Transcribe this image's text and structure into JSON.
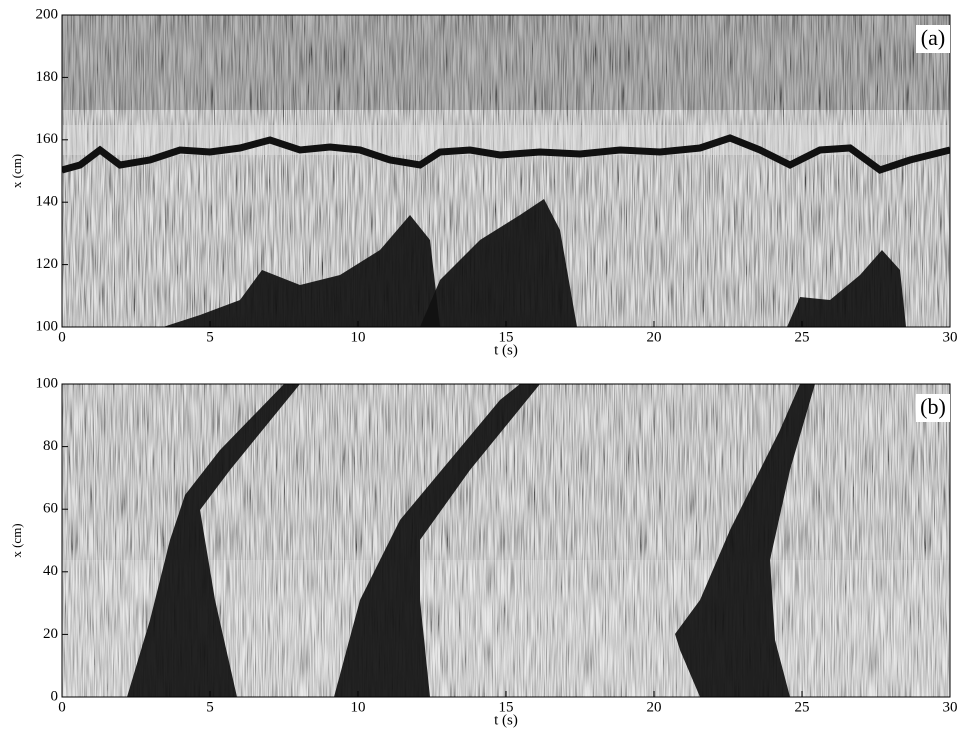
{
  "chart_data": [
    {
      "type": "image",
      "annotation": "(a)",
      "xlabel": "t (s)",
      "ylabel": "x (cm)",
      "xlim": [
        0,
        30
      ],
      "ylim": [
        100,
        200
      ],
      "xticks": [
        0,
        5,
        10,
        15,
        20,
        25,
        30
      ],
      "yticks": [
        100,
        120,
        140,
        160,
        180,
        200
      ]
    },
    {
      "type": "image",
      "annotation": "(b)",
      "xlabel": "t (s)",
      "ylabel": "x (cm)",
      "xlim": [
        0,
        30
      ],
      "ylim": [
        0,
        100
      ],
      "xticks": [
        0,
        5,
        10,
        15,
        20,
        25,
        30
      ],
      "yticks": [
        0,
        20,
        40,
        60,
        80,
        100
      ]
    }
  ]
}
